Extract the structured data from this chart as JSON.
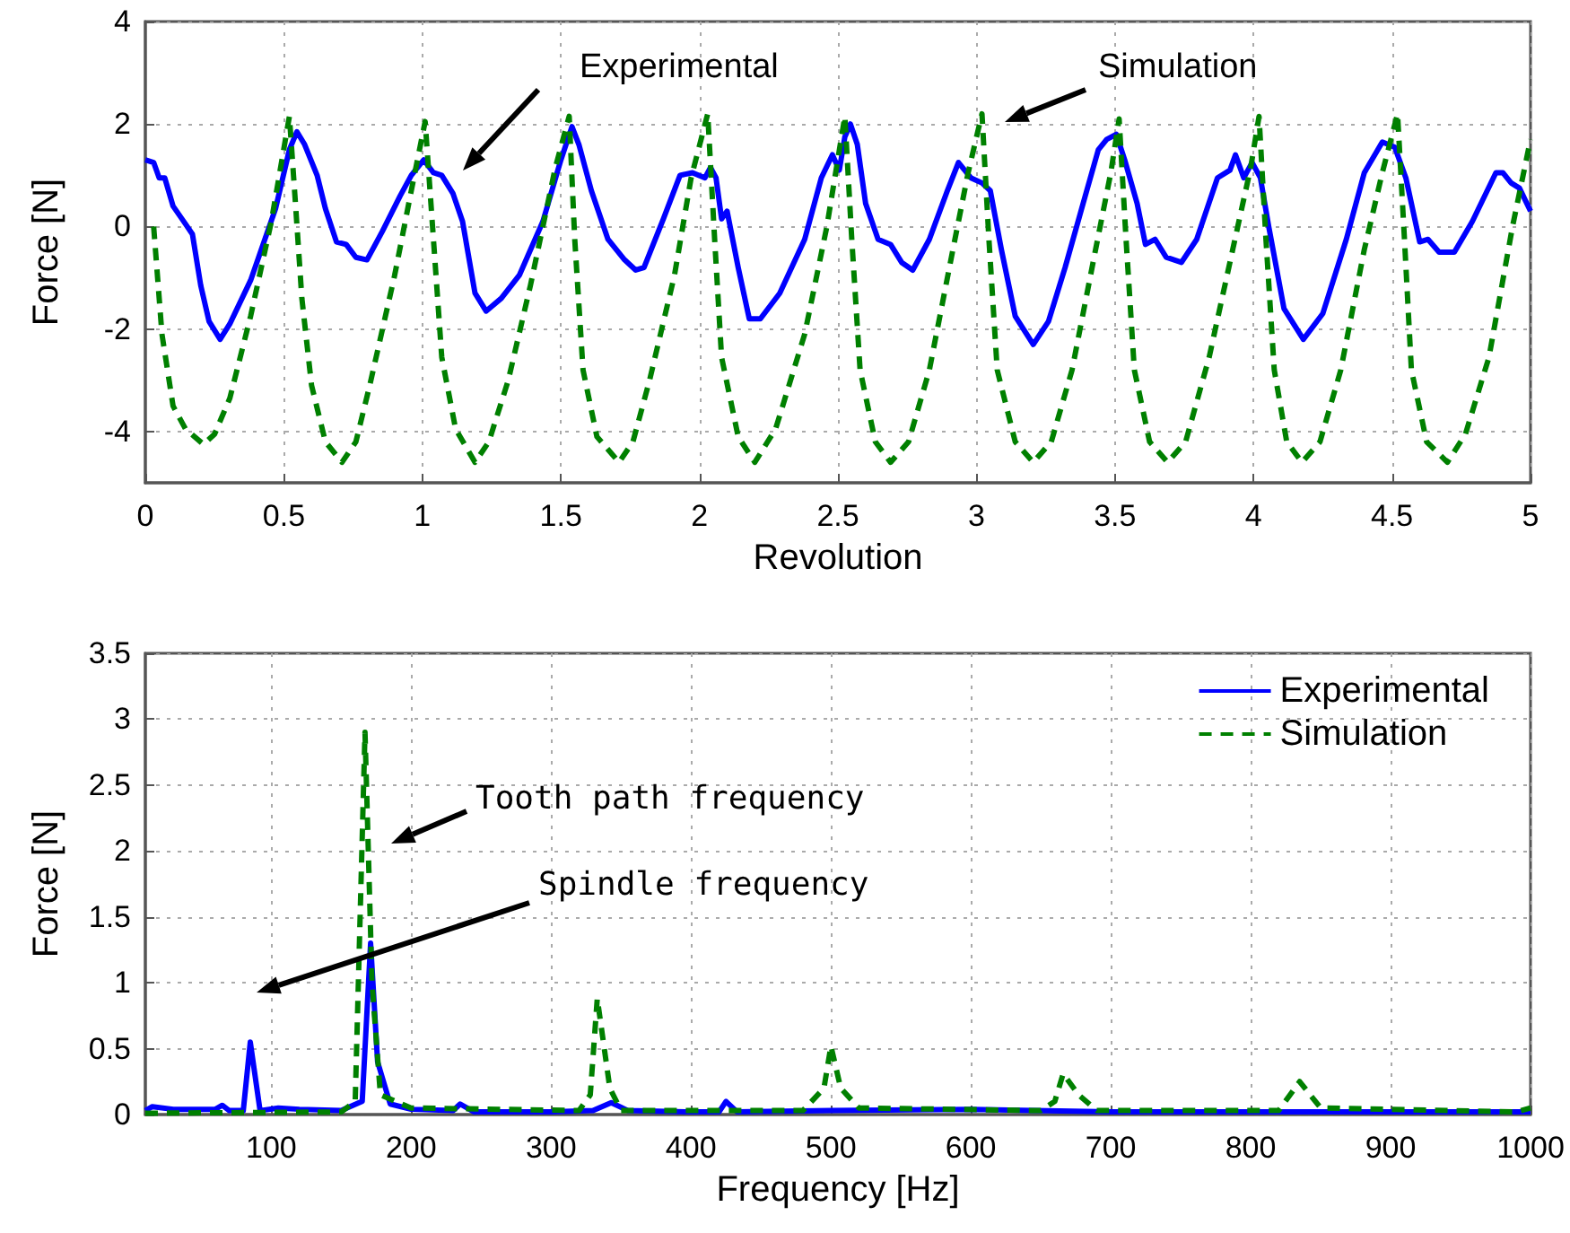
{
  "chart_data": [
    {
      "type": "line",
      "xlabel": "Revolution",
      "ylabel": "Force [N]",
      "xlim": [
        0,
        5
      ],
      "ylim": [
        -5,
        4
      ],
      "xticks": [
        0,
        0.5,
        1,
        1.5,
        2,
        2.5,
        3,
        3.5,
        4,
        4.5,
        5
      ],
      "yticks": [
        -4,
        -2,
        0,
        2,
        4
      ],
      "grid": true,
      "legend": false,
      "annotations": [
        "Experimental",
        "Simulation"
      ],
      "series": [
        {
          "color": "#0000ff",
          "line_style": "solid",
          "x": [
            0,
            0.03,
            0.05,
            0.07,
            0.1,
            0.145,
            0.17,
            0.2,
            0.23,
            0.27,
            0.305,
            0.38,
            0.47,
            0.52,
            0.547,
            0.575,
            0.62,
            0.65,
            0.69,
            0.725,
            0.76,
            0.8,
            0.855,
            0.92,
            0.96,
            1.005,
            1.04,
            1.07,
            1.11,
            1.145,
            1.19,
            1.23,
            1.285,
            1.35,
            1.435,
            1.5,
            1.54,
            1.565,
            1.61,
            1.67,
            1.73,
            1.77,
            1.8,
            1.87,
            1.93,
            1.975,
            2.02,
            2.04,
            2.06,
            2.08,
            2.1,
            2.14,
            2.18,
            2.22,
            2.29,
            2.38,
            2.44,
            2.48,
            2.505,
            2.525,
            2.545,
            2.57,
            2.6,
            2.645,
            2.69,
            2.73,
            2.77,
            2.83,
            2.895,
            2.935,
            2.98,
            3.02,
            3.05,
            3.09,
            3.14,
            3.205,
            3.26,
            3.32,
            3.385,
            3.44,
            3.47,
            3.505,
            3.535,
            3.58,
            3.61,
            3.645,
            3.685,
            3.74,
            3.795,
            3.87,
            3.915,
            3.935,
            3.965,
            3.995,
            4.025,
            4.055,
            4.11,
            4.18,
            4.25,
            4.335,
            4.4,
            4.465,
            4.51,
            4.55,
            4.6,
            4.63,
            4.67,
            4.725,
            4.79,
            4.875,
            4.9,
            4.93,
            4.96,
            5.0
          ],
          "values": [
            1.3,
            1.25,
            0.95,
            0.95,
            0.4,
            0.05,
            -0.15,
            -1.15,
            -1.85,
            -2.2,
            -1.9,
            -1.05,
            0.35,
            1.5,
            1.85,
            1.6,
            1.0,
            0.35,
            -0.3,
            -0.35,
            -0.6,
            -0.65,
            -0.1,
            0.6,
            1.0,
            1.3,
            1.05,
            1.0,
            0.65,
            0.1,
            -1.3,
            -1.65,
            -1.4,
            -0.95,
            0.1,
            1.3,
            1.95,
            1.6,
            0.7,
            -0.25,
            -0.65,
            -0.85,
            -0.8,
            0.15,
            1.0,
            1.05,
            0.95,
            1.15,
            0.95,
            0.15,
            0.3,
            -0.8,
            -1.8,
            -1.8,
            -1.3,
            -0.25,
            0.95,
            1.4,
            1.1,
            1.75,
            2.0,
            1.6,
            0.45,
            -0.25,
            -0.35,
            -0.7,
            -0.85,
            -0.25,
            0.7,
            1.25,
            0.95,
            0.85,
            0.7,
            -0.45,
            -1.75,
            -2.3,
            -1.85,
            -0.8,
            0.45,
            1.5,
            1.7,
            1.8,
            1.3,
            0.45,
            -0.35,
            -0.25,
            -0.6,
            -0.7,
            -0.25,
            0.95,
            1.1,
            1.4,
            0.95,
            1.25,
            0.95,
            0.0,
            -1.6,
            -2.2,
            -1.7,
            -0.25,
            1.05,
            1.65,
            1.55,
            0.95,
            -0.3,
            -0.25,
            -0.5,
            -0.5,
            0.1,
            1.05,
            1.05,
            0.85,
            0.75,
            0.3
          ]
        },
        {
          "color": "#008000",
          "line_style": "dashed",
          "x": [
            0.03,
            0.06,
            0.1,
            0.145,
            0.21,
            0.25,
            0.305,
            0.38,
            0.455,
            0.52,
            0.54,
            0.565,
            0.6,
            0.65,
            0.71,
            0.76,
            0.81,
            0.9,
            0.96,
            1.01,
            1.04,
            1.07,
            1.12,
            1.19,
            1.24,
            1.31,
            1.39,
            1.48,
            1.53,
            1.55,
            1.58,
            1.63,
            1.71,
            1.76,
            1.82,
            1.91,
            1.97,
            2.03,
            2.055,
            2.08,
            2.14,
            2.2,
            2.275,
            2.38,
            2.46,
            2.525,
            2.55,
            2.58,
            2.635,
            2.69,
            2.755,
            2.83,
            2.915,
            2.97,
            3.02,
            3.045,
            3.075,
            3.14,
            3.205,
            3.27,
            3.345,
            3.43,
            3.485,
            3.515,
            3.54,
            3.57,
            3.625,
            3.69,
            3.755,
            3.84,
            3.925,
            3.99,
            4.02,
            4.045,
            4.075,
            4.12,
            4.175,
            4.24,
            4.315,
            4.4,
            4.465,
            4.52,
            4.545,
            4.57,
            4.625,
            4.7,
            4.765,
            4.85,
            4.935,
            5.0
          ],
          "values": [
            0,
            -2.1,
            -3.5,
            -3.95,
            -4.25,
            -4.05,
            -3.35,
            -1.75,
            0.1,
            2.15,
            0.6,
            -1.4,
            -3.1,
            -4.2,
            -4.6,
            -4.2,
            -3.1,
            -0.95,
            0.7,
            2.05,
            -0.25,
            -2.55,
            -3.95,
            -4.6,
            -4.2,
            -3.0,
            -1.15,
            1.15,
            2.15,
            -0.25,
            -2.8,
            -4.1,
            -4.6,
            -4.2,
            -3.0,
            -0.95,
            0.95,
            2.2,
            -0.25,
            -2.55,
            -4.1,
            -4.6,
            -3.95,
            -2.1,
            0.0,
            2.15,
            -0.25,
            -2.8,
            -4.2,
            -4.6,
            -4.2,
            -2.8,
            -0.45,
            1.05,
            2.2,
            -0.25,
            -2.8,
            -4.2,
            -4.6,
            -4.2,
            -2.8,
            -0.45,
            1.05,
            2.1,
            -0.25,
            -2.8,
            -4.2,
            -4.6,
            -4.2,
            -2.55,
            -0.45,
            1.15,
            2.15,
            -0.25,
            -2.8,
            -4.2,
            -4.6,
            -4.2,
            -2.8,
            -0.45,
            1.05,
            2.2,
            -0.25,
            -2.8,
            -4.2,
            -4.6,
            -4.05,
            -2.55,
            0.0,
            1.7
          ]
        }
      ]
    },
    {
      "type": "line",
      "xlabel": "Frequency [Hz]",
      "ylabel": "Force [N]",
      "xlim": [
        10,
        1000
      ],
      "ylim": [
        0,
        3.5
      ],
      "xticks": [
        100,
        200,
        300,
        400,
        500,
        600,
        700,
        800,
        900,
        1000
      ],
      "yticks": [
        0,
        0.5,
        1,
        1.5,
        2,
        2.5,
        3,
        3.5
      ],
      "grid": true,
      "legend": "top right",
      "annotations": [
        "Tooth path frequency",
        "Spindle frequency"
      ],
      "series": [
        {
          "name": "Experimental",
          "color": "#0000ff",
          "line_style": "solid",
          "x": [
            10,
            15,
            30,
            60,
            65,
            70,
            80,
            85,
            92,
            105,
            120,
            150,
            165,
            171,
            176,
            185,
            200,
            230,
            235,
            245,
            300,
            330,
            343,
            355,
            400,
            420,
            425,
            433,
            500,
            600,
            700,
            800,
            900,
            1000
          ],
          "values": [
            0.03,
            0.06,
            0.04,
            0.04,
            0.07,
            0.03,
            0.03,
            0.55,
            0.03,
            0.05,
            0.04,
            0.03,
            0.1,
            1.3,
            0.4,
            0.08,
            0.04,
            0.03,
            0.08,
            0.02,
            0.02,
            0.03,
            0.09,
            0.03,
            0.02,
            0.02,
            0.1,
            0.02,
            0.03,
            0.04,
            0.02,
            0.02,
            0.02,
            0.02
          ]
        },
        {
          "name": "Simulation",
          "color": "#008000",
          "line_style": "dashed",
          "x": [
            10,
            150,
            160,
            167,
            172,
            178,
            200,
            320,
            328,
            333,
            342,
            350,
            480,
            495,
            500,
            507,
            520,
            650,
            660,
            666,
            677,
            690,
            820,
            835,
            850,
            990,
            1000
          ],
          "values": [
            0.01,
            0.02,
            0.1,
            2.9,
            1.0,
            0.15,
            0.05,
            0.03,
            0.15,
            0.88,
            0.2,
            0.03,
            0.03,
            0.2,
            0.52,
            0.2,
            0.05,
            0.03,
            0.1,
            0.31,
            0.15,
            0.03,
            0.03,
            0.25,
            0.05,
            0.02,
            0.05
          ]
        }
      ]
    }
  ]
}
